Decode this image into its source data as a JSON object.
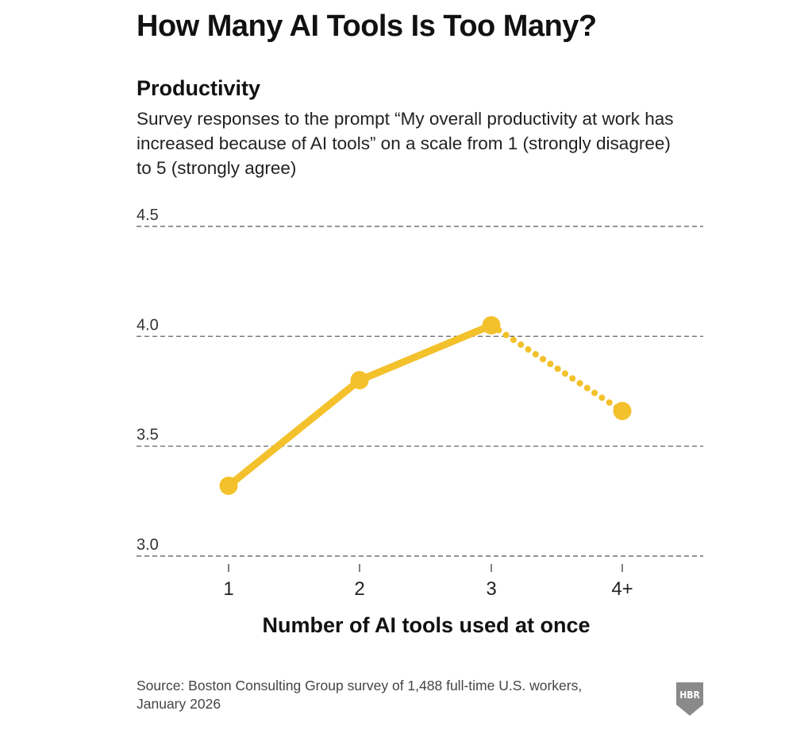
{
  "chart_data": {
    "type": "line",
    "title": "How Many AI Tools Is Too Many?",
    "subtitle": "Productivity",
    "description_lines": [
      "Survey responses to the prompt “My overall productivity at work has",
      "increased because of AI tools” on a scale from 1 (strongly disagree)",
      "to 5 (strongly agree)"
    ],
    "xlabel": "Number of AI tools used at once",
    "ylabel": "",
    "categories": [
      "1",
      "2",
      "3",
      "4+"
    ],
    "series": [
      {
        "values": [
          3.32,
          3.8,
          4.05,
          3.66
        ],
        "color": "#f3c12b",
        "dashed_last_segment": true
      }
    ],
    "ylim": [
      3.0,
      4.5
    ],
    "yticks": [
      {
        "value": 3.0,
        "label": "3.0"
      },
      {
        "value": 3.5,
        "label": "3.5"
      },
      {
        "value": 4.0,
        "label": "4.0"
      },
      {
        "value": 4.5,
        "label": "4.5"
      }
    ],
    "grid": "horizontal-dashed",
    "source_lines": [
      "Source: Boston Consulting Group survey of 1,488 full-time U.S. workers,",
      "January 2026"
    ],
    "logo_text": "HBR"
  }
}
